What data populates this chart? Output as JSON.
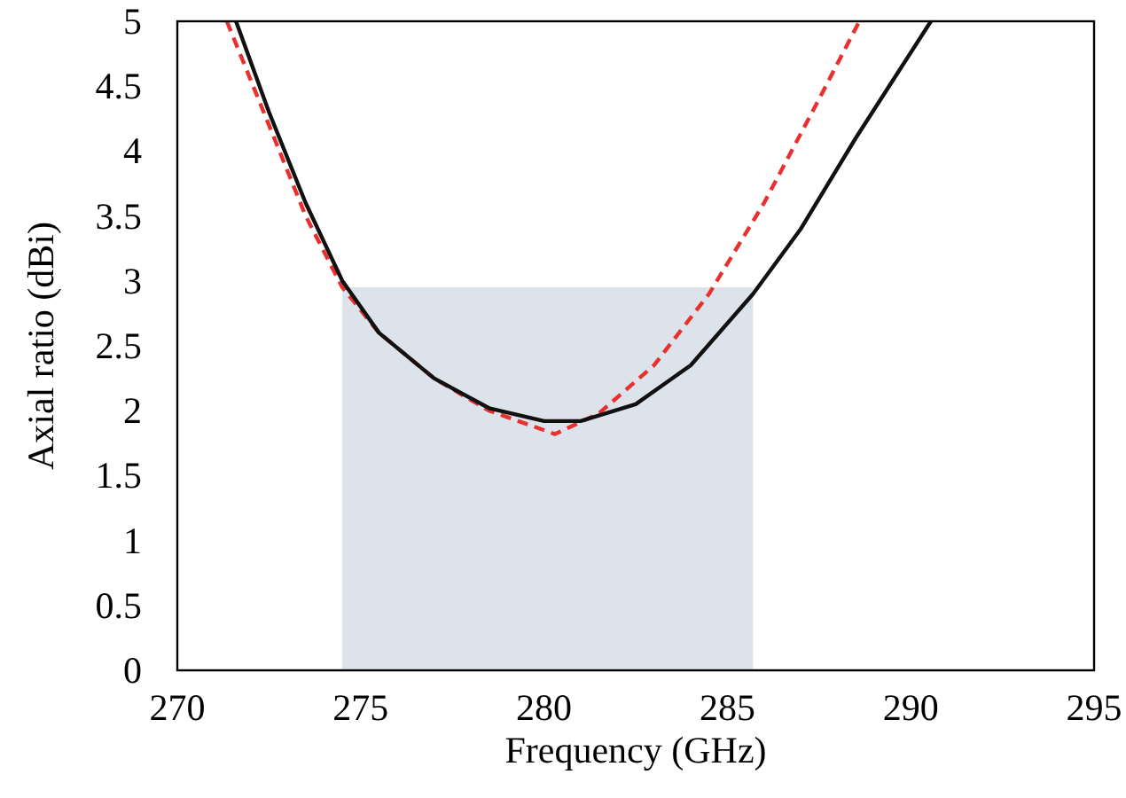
{
  "chart_data": {
    "type": "line",
    "xlabel": "Frequency (GHz)",
    "ylabel": "Axial ratio (dBi)",
    "xlim": [
      270,
      295
    ],
    "xticks": [
      270,
      275,
      280,
      285,
      290,
      295
    ],
    "ylim": [
      0,
      5
    ],
    "yticks": [
      0,
      0.5,
      1,
      1.5,
      2,
      2.5,
      3,
      3.5,
      4,
      4.5,
      5
    ],
    "grid": false,
    "marker": "none",
    "series": [
      {
        "type": "area",
        "color": "#dde3ea",
        "x": [
          274.5,
          285.7
        ],
        "values": [
          2.95,
          2.95
        ]
      },
      {
        "color": "#e8312f",
        "line_style": "dashed",
        "x": [
          271.35,
          272.5,
          273.5,
          274.5,
          275.5,
          277,
          278.5,
          280.3,
          281.5,
          283,
          284.5,
          286,
          287.5,
          288.6
        ],
        "values": [
          5,
          4.2,
          3.5,
          2.95,
          2.6,
          2.25,
          2.0,
          1.82,
          1.98,
          2.35,
          2.9,
          3.6,
          4.4,
          5
        ]
      },
      {
        "color": "#111111",
        "line_style": "solid",
        "x": [
          271.6,
          272.5,
          273.5,
          274.5,
          275.5,
          277,
          278.5,
          280,
          281,
          282.5,
          284,
          285.7,
          287,
          288.5,
          290.55
        ],
        "values": [
          5,
          4.3,
          3.6,
          3.0,
          2.6,
          2.25,
          2.02,
          1.92,
          1.92,
          2.05,
          2.35,
          2.9,
          3.4,
          4.1,
          5
        ]
      }
    ]
  }
}
